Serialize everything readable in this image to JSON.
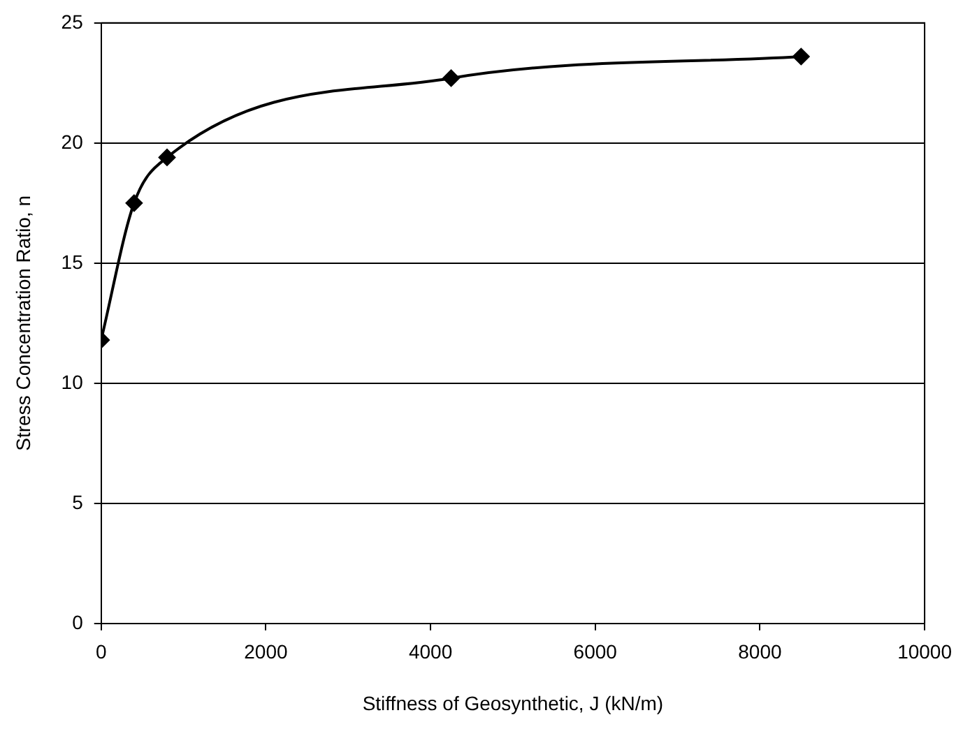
{
  "chart_data": {
    "type": "line",
    "xlabel": "Stiffness of Geosynthetic, J (kN/m)",
    "ylabel": "Stress Concentration Ratio, n",
    "x": [
      0,
      400,
      800,
      4250,
      8500
    ],
    "series": [
      {
        "color": "#000000",
        "values": [
          11.8,
          17.5,
          19.4,
          22.7,
          23.6
        ]
      }
    ],
    "xlim": [
      0,
      10000
    ],
    "xticks": [
      0,
      2000,
      4000,
      6000,
      8000,
      10000
    ],
    "ylim": [
      0,
      25
    ],
    "yticks": [
      0,
      5,
      10,
      15,
      20,
      25
    ],
    "grid": "y",
    "legend": false,
    "marker": "diamond",
    "line_style": "solid"
  }
}
